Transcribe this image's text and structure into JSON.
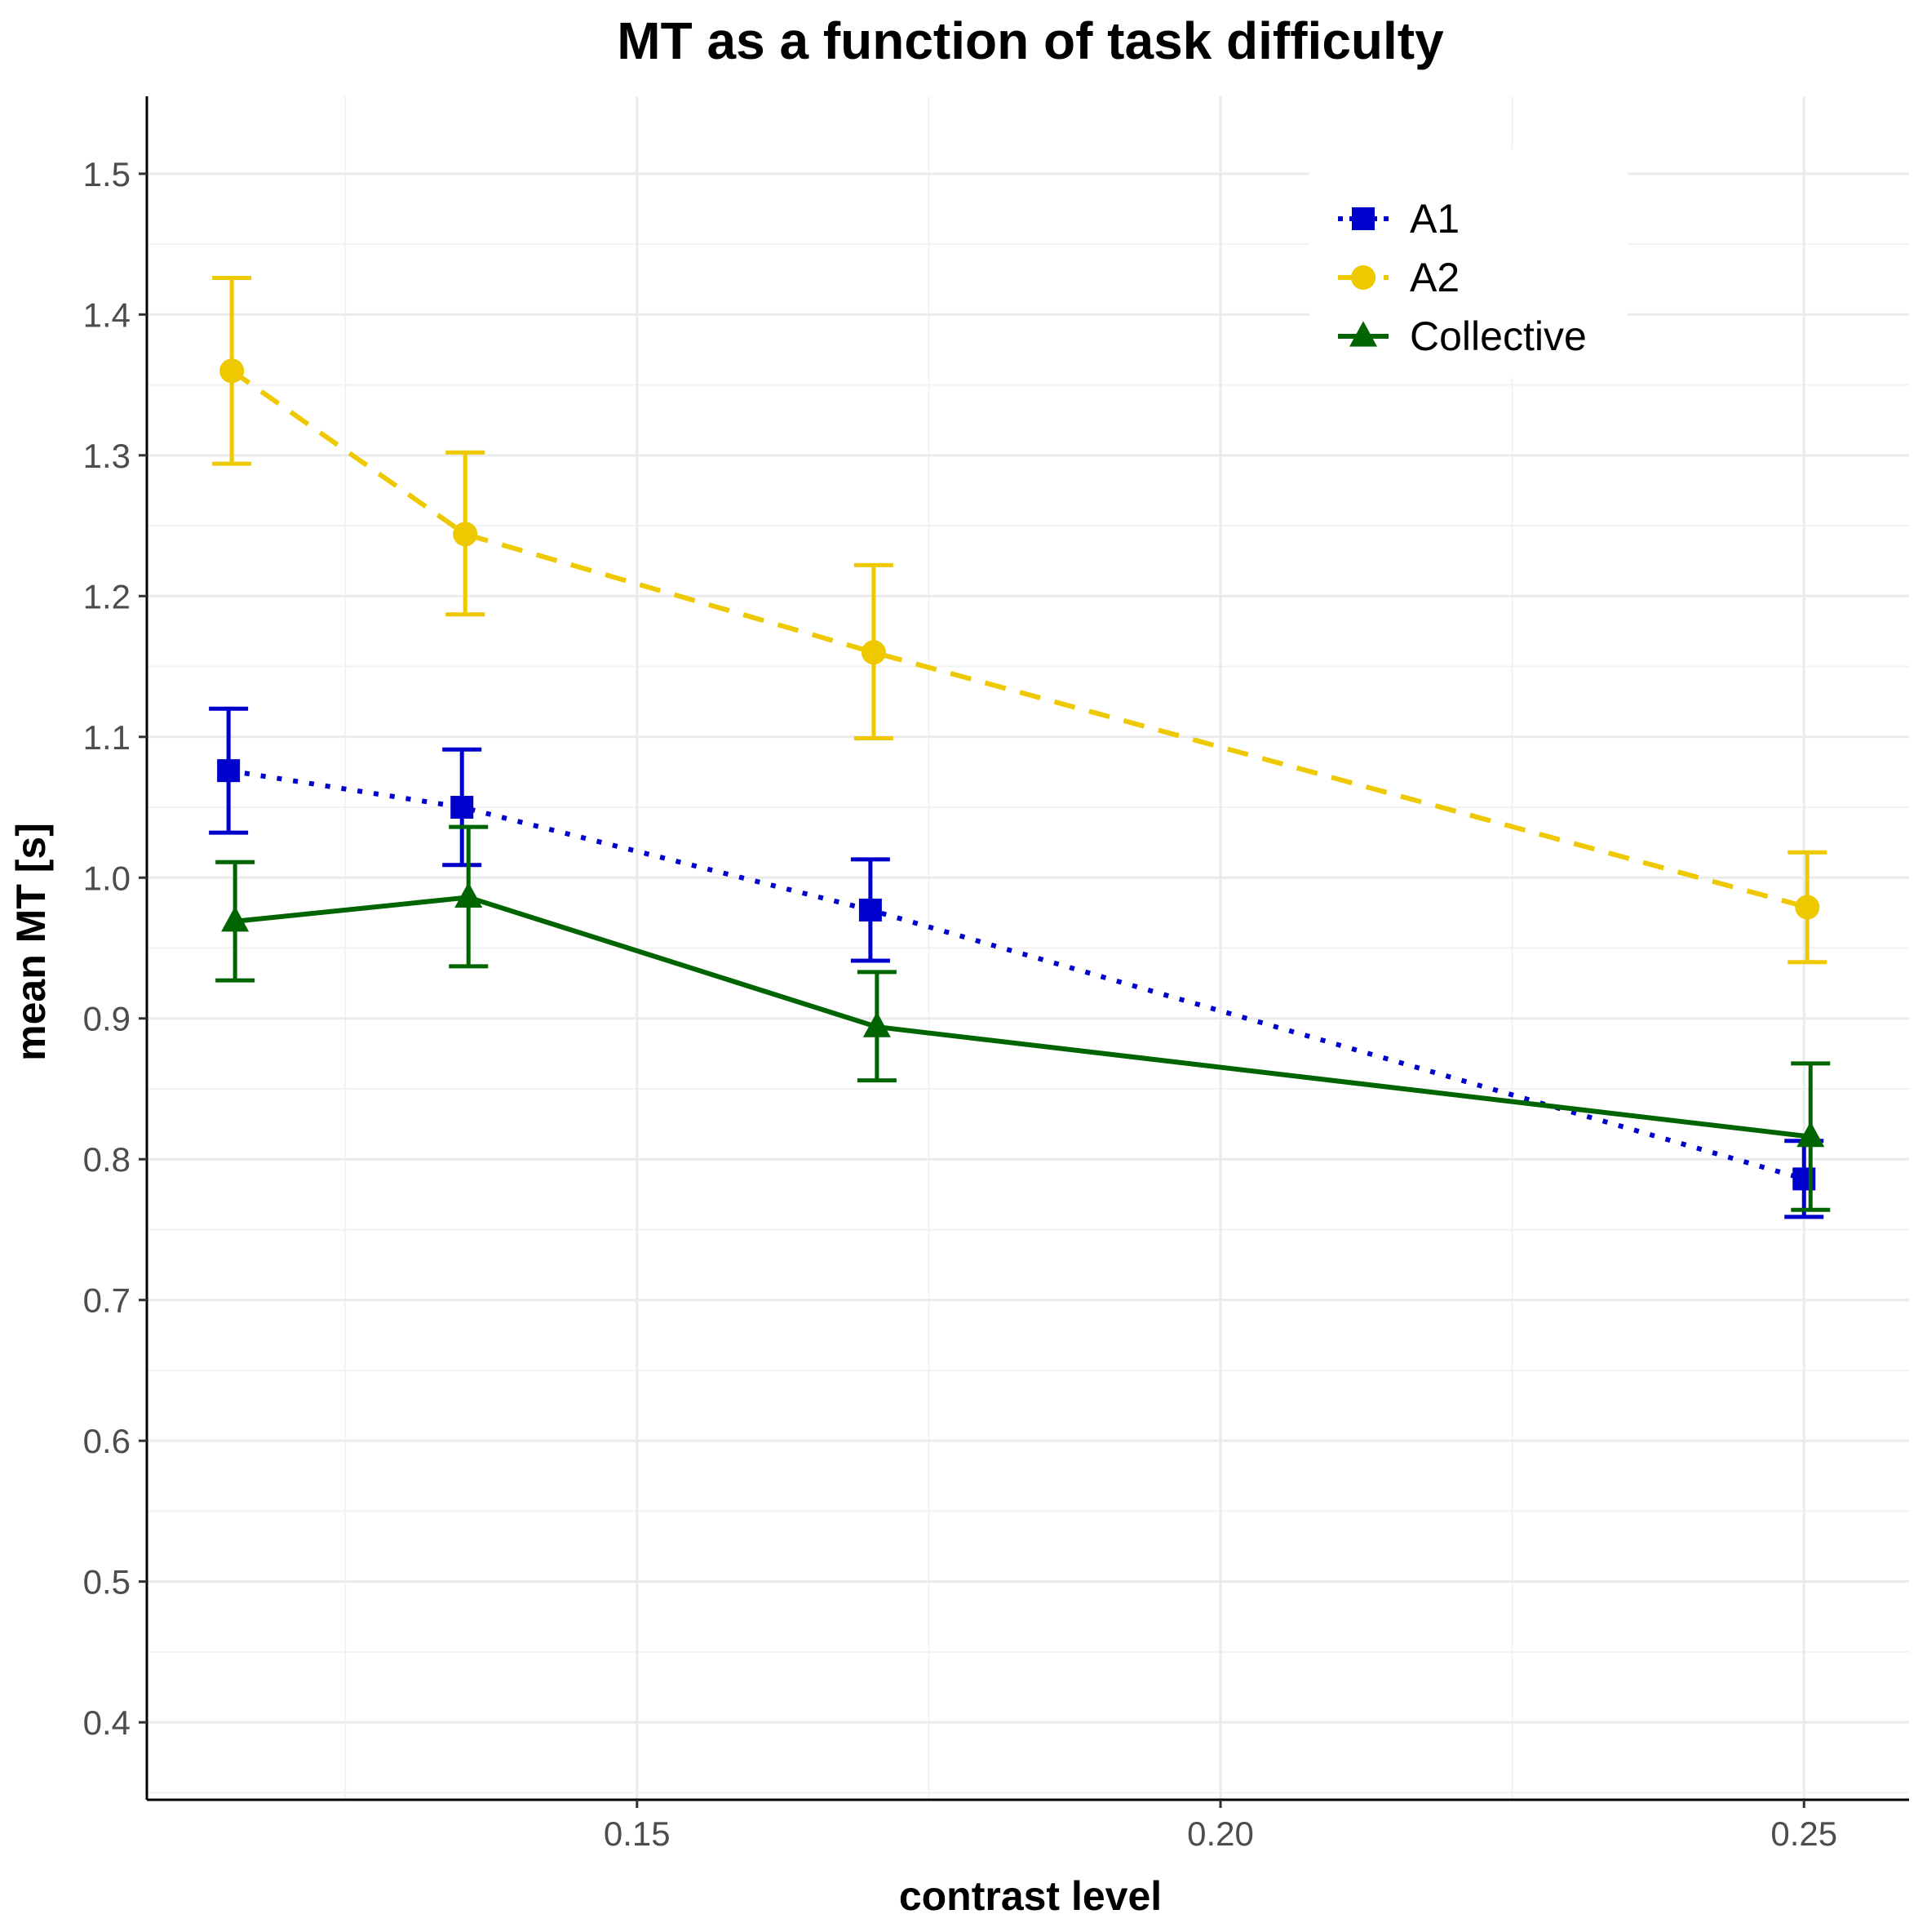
{
  "chart_data": {
    "type": "line",
    "title": "MT  as a function of task difficulty",
    "xlabel": "contrast level",
    "ylabel": "mean  MT  [s]",
    "xlim": [
      0.108,
      0.259
    ],
    "ylim": [
      0.345,
      1.555
    ],
    "x_ticks": [
      0.15,
      0.2,
      0.25
    ],
    "x_tick_labels": [
      "0.15",
      "0.20",
      "0.25"
    ],
    "y_ticks": [
      0.4,
      0.5,
      0.6,
      0.7,
      0.8,
      0.9,
      1.0,
      1.1,
      1.2,
      1.3,
      1.4,
      1.5
    ],
    "y_tick_labels": [
      "0.4",
      "0.5",
      "0.6",
      "0.7",
      "0.8",
      "0.9",
      "1.0",
      "1.1",
      "1.2",
      "1.3",
      "1.4",
      "1.5"
    ],
    "x_minor_ticks": [
      0.125,
      0.175,
      0.225
    ],
    "grid": true,
    "legend_position": "top-right",
    "series": [
      {
        "name": "A1",
        "color": "#0000cc",
        "line_style": "dotted",
        "marker": "square",
        "x": [
          0.115,
          0.135,
          0.17,
          0.25
        ],
        "y": [
          1.076,
          1.05,
          0.977,
          0.786
        ],
        "err_low": [
          1.032,
          1.009,
          0.941,
          0.759
        ],
        "err_high": [
          1.12,
          1.091,
          1.013,
          0.813
        ]
      },
      {
        "name": "A2",
        "color": "#eec900",
        "line_style": "dashed",
        "marker": "circle",
        "x": [
          0.115,
          0.135,
          0.17,
          0.25
        ],
        "y": [
          1.36,
          1.244,
          1.16,
          0.979
        ],
        "err_low": [
          1.294,
          1.187,
          1.099,
          0.94
        ],
        "err_high": [
          1.426,
          1.302,
          1.222,
          1.018
        ]
      },
      {
        "name": "Collective",
        "color": "#006400",
        "line_style": "solid",
        "marker": "triangle",
        "x": [
          0.115,
          0.135,
          0.17,
          0.25
        ],
        "y": [
          0.969,
          0.986,
          0.894,
          0.816
        ],
        "err_low": [
          0.927,
          0.937,
          0.856,
          0.764
        ],
        "err_high": [
          1.011,
          1.036,
          0.933,
          0.868
        ]
      }
    ]
  }
}
